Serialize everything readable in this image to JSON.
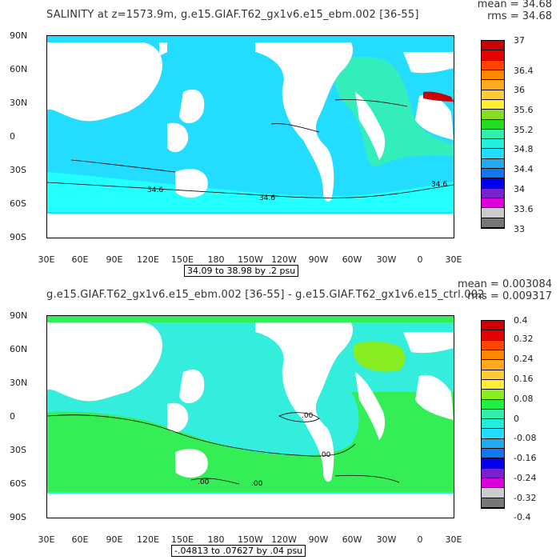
{
  "panels": [
    {
      "title": "SALINITY at z=1573.9m, g.e15.GIAF.T62_gx1v6.e15_ebm.002 [36-55]",
      "mean": "mean = 34.68",
      "rms": "rms = 34.68",
      "range_label": "34.09 to 38.98 by .2 psu",
      "contour_labels": [
        "34.6",
        "34.6",
        "34.6"
      ],
      "colorbar_labels": [
        "37",
        "36.4",
        "36",
        "35.6",
        "35.2",
        "34.8",
        "34.4",
        "34",
        "33.6",
        "33"
      ],
      "colorbar_colors": [
        "#cc0000",
        "#e60000",
        "#ff4400",
        "#ff8800",
        "#ffaa22",
        "#ffcc33",
        "#ffee33",
        "#88dd22",
        "#22dd22",
        "#33eeaa",
        "#22eedd",
        "#22ddff",
        "#22aaee",
        "#1177ee",
        "#0000ee",
        "#7722cc",
        "#dd00dd",
        "#cccccc",
        "#777777"
      ],
      "colors": {
        "ocean_main": "#22ddff",
        "ocean_south": "#22ffff",
        "atlantic": "#33eebb",
        "med": "#cc0000",
        "land": "#ffffff"
      }
    },
    {
      "title": "g.e15.GIAF.T62_gx1v6.e15_ebm.002 [36-55] - g.e15.GIAF.T62_gx1v6.e15_ctrl.002",
      "mean": "mean = 0.003084",
      "rms": "rms = 0.009317",
      "range_label": "-.04813 to .07627 by .04 psu",
      "contour_labels": [
        ".00",
        ".00",
        ".00",
        ".00"
      ],
      "colorbar_labels": [
        "0.4",
        "0.32",
        "0.24",
        "0.16",
        "0.08",
        "0",
        "-0.08",
        "-0.16",
        "-0.24",
        "-0.32",
        "-0.4"
      ],
      "colorbar_colors": [
        "#cc0000",
        "#e60000",
        "#ff4400",
        "#ff8800",
        "#ffaa22",
        "#ffcc33",
        "#ffee33",
        "#88ee22",
        "#22ee44",
        "#33eeaa",
        "#22eedd",
        "#22ddff",
        "#22aaee",
        "#1177ee",
        "#0000ee",
        "#7722cc",
        "#dd00dd",
        "#cccccc",
        "#777777"
      ],
      "colors": {
        "ocean_main": "#33eedd",
        "ocean_south": "#33ee55",
        "atlantic": "#33ee55",
        "labrador": "#88ee22",
        "land": "#ffffff"
      }
    }
  ],
  "axes": {
    "lat_labels": [
      "90N",
      "60N",
      "30N",
      "0",
      "30S",
      "60S",
      "90S"
    ],
    "lon_labels": [
      "30E",
      "60E",
      "90E",
      "120E",
      "150E",
      "180",
      "150W",
      "120W",
      "90W",
      "60W",
      "30W",
      "0",
      "30E"
    ]
  }
}
